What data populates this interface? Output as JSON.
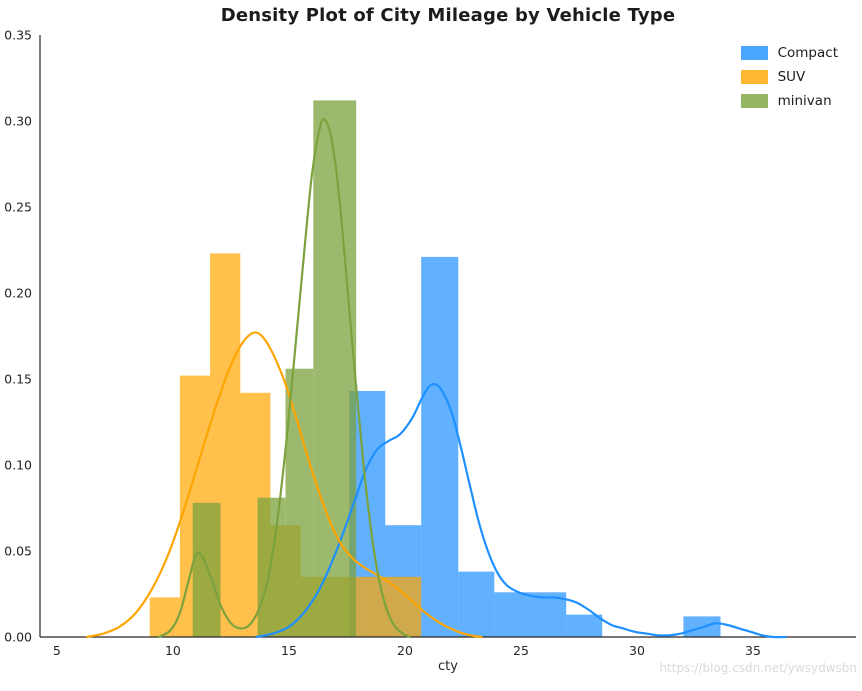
{
  "chart_data": {
    "type": "histogram_kde",
    "title": "Density Plot of City Mileage by Vehicle Type",
    "xlabel": "cty",
    "ylabel": "",
    "xlim": [
      4.27,
      39.44
    ],
    "ylim": [
      0,
      0.35
    ],
    "xticks": [
      5,
      10,
      15,
      20,
      25,
      30,
      35
    ],
    "yticks": [
      0,
      0.05,
      0.1,
      0.15,
      0.2,
      0.25,
      0.3,
      0.35
    ],
    "ytick_labels": [
      "0.00",
      "0.05",
      "0.10",
      "0.15",
      "0.20",
      "0.25",
      "0.30",
      "0.35"
    ],
    "grid": false,
    "legend_position": "upper right",
    "watermark": "https://blog.csdn.net/ywsydwsbn",
    "series": [
      {
        "name": "Compact",
        "color": "#1E90FF",
        "bar_opacity": 0.7,
        "bars": [
          [
            17.6,
            19.15,
            0.143
          ],
          [
            19.15,
            20.7,
            0.065
          ],
          [
            20.7,
            22.3,
            0.221
          ],
          [
            22.3,
            23.85,
            0.038
          ],
          [
            23.85,
            25.4,
            0.026
          ],
          [
            25.4,
            26.95,
            0.026
          ],
          [
            26.95,
            28.5,
            0.013
          ],
          [
            32.0,
            33.6,
            0.012
          ]
        ],
        "kde": [
          [
            13.6,
            0
          ],
          [
            14.3,
            0.002
          ],
          [
            15.0,
            0.006
          ],
          [
            15.7,
            0.015
          ],
          [
            16.4,
            0.03
          ],
          [
            17.1,
            0.052
          ],
          [
            17.8,
            0.078
          ],
          [
            18.3,
            0.097
          ],
          [
            18.8,
            0.109
          ],
          [
            19.3,
            0.114
          ],
          [
            19.8,
            0.118
          ],
          [
            20.3,
            0.127
          ],
          [
            20.7,
            0.138
          ],
          [
            21.0,
            0.145
          ],
          [
            21.3,
            0.147
          ],
          [
            21.6,
            0.143
          ],
          [
            22.0,
            0.131
          ],
          [
            22.4,
            0.111
          ],
          [
            22.8,
            0.088
          ],
          [
            23.2,
            0.066
          ],
          [
            23.6,
            0.049
          ],
          [
            24.0,
            0.037
          ],
          [
            24.4,
            0.03
          ],
          [
            24.9,
            0.026
          ],
          [
            25.4,
            0.024
          ],
          [
            25.9,
            0.023
          ],
          [
            26.4,
            0.023
          ],
          [
            26.9,
            0.022
          ],
          [
            27.4,
            0.02
          ],
          [
            27.9,
            0.016
          ],
          [
            28.4,
            0.011
          ],
          [
            28.9,
            0.007
          ],
          [
            29.4,
            0.005
          ],
          [
            29.9,
            0.003
          ],
          [
            30.4,
            0.002
          ],
          [
            30.9,
            0.001
          ],
          [
            31.4,
            0.001
          ],
          [
            31.9,
            0.002
          ],
          [
            32.4,
            0.004
          ],
          [
            32.9,
            0.006
          ],
          [
            33.4,
            0.008
          ],
          [
            33.9,
            0.007
          ],
          [
            34.4,
            0.005
          ],
          [
            34.9,
            0.003
          ],
          [
            35.4,
            0.001
          ],
          [
            35.9,
            0
          ],
          [
            36.4,
            0
          ]
        ]
      },
      {
        "name": "SUV",
        "color": "#FFA500",
        "bar_opacity": 0.7,
        "bars": [
          [
            9.0,
            10.3,
            0.023
          ],
          [
            10.3,
            11.6,
            0.152
          ],
          [
            11.6,
            12.9,
            0.223
          ],
          [
            12.9,
            14.2,
            0.142
          ],
          [
            14.2,
            15.5,
            0.065
          ],
          [
            15.5,
            16.8,
            0.035
          ],
          [
            16.8,
            18.1,
            0.035
          ],
          [
            18.1,
            19.4,
            0.035
          ],
          [
            19.4,
            20.7,
            0.035
          ]
        ],
        "kde": [
          [
            6.3,
            0
          ],
          [
            7.0,
            0.002
          ],
          [
            7.7,
            0.006
          ],
          [
            8.4,
            0.014
          ],
          [
            9.1,
            0.028
          ],
          [
            9.8,
            0.048
          ],
          [
            10.5,
            0.075
          ],
          [
            11.2,
            0.106
          ],
          [
            11.9,
            0.136
          ],
          [
            12.5,
            0.158
          ],
          [
            13.0,
            0.171
          ],
          [
            13.5,
            0.177
          ],
          [
            13.9,
            0.174
          ],
          [
            14.3,
            0.165
          ],
          [
            14.8,
            0.149
          ],
          [
            15.3,
            0.128
          ],
          [
            15.8,
            0.105
          ],
          [
            16.3,
            0.084
          ],
          [
            16.8,
            0.066
          ],
          [
            17.3,
            0.053
          ],
          [
            17.8,
            0.045
          ],
          [
            18.3,
            0.04
          ],
          [
            18.8,
            0.036
          ],
          [
            19.3,
            0.032
          ],
          [
            19.8,
            0.027
          ],
          [
            20.3,
            0.021
          ],
          [
            20.8,
            0.015
          ],
          [
            21.3,
            0.01
          ],
          [
            21.8,
            0.006
          ],
          [
            22.3,
            0.003
          ],
          [
            22.8,
            0.001
          ],
          [
            23.3,
            0
          ]
        ]
      },
      {
        "name": "minivan",
        "color": "#7CA23E",
        "bar_opacity": 0.75,
        "bars": [
          [
            10.85,
            12.05,
            0.078
          ],
          [
            13.65,
            14.85,
            0.081
          ],
          [
            14.85,
            16.05,
            0.156
          ],
          [
            16.05,
            17.9,
            0.312
          ]
        ],
        "kde": [
          [
            9.4,
            0
          ],
          [
            9.9,
            0.004
          ],
          [
            10.3,
            0.014
          ],
          [
            10.7,
            0.034
          ],
          [
            11.0,
            0.048
          ],
          [
            11.3,
            0.046
          ],
          [
            11.7,
            0.032
          ],
          [
            12.1,
            0.017
          ],
          [
            12.5,
            0.008
          ],
          [
            12.9,
            0.005
          ],
          [
            13.3,
            0.007
          ],
          [
            13.7,
            0.016
          ],
          [
            14.1,
            0.034
          ],
          [
            14.5,
            0.068
          ],
          [
            14.9,
            0.115
          ],
          [
            15.3,
            0.172
          ],
          [
            15.7,
            0.23
          ],
          [
            16.0,
            0.27
          ],
          [
            16.3,
            0.294
          ],
          [
            16.5,
            0.301
          ],
          [
            16.8,
            0.292
          ],
          [
            17.1,
            0.264
          ],
          [
            17.4,
            0.222
          ],
          [
            17.8,
            0.16
          ],
          [
            18.2,
            0.102
          ],
          [
            18.6,
            0.056
          ],
          [
            19.0,
            0.026
          ],
          [
            19.4,
            0.01
          ],
          [
            19.8,
            0.003
          ],
          [
            20.2,
            0
          ]
        ]
      }
    ]
  }
}
